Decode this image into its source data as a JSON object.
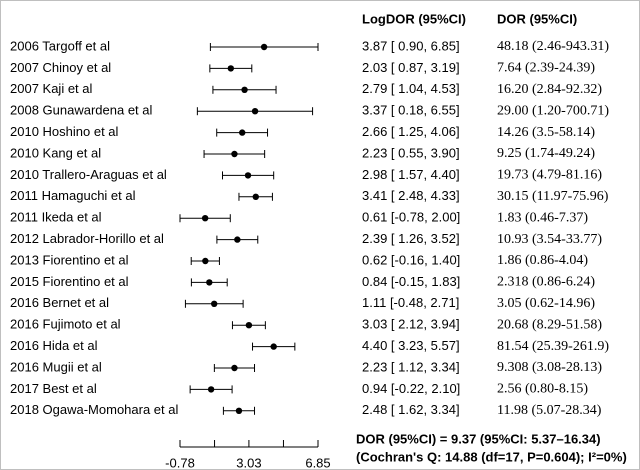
{
  "chart_data": {
    "type": "forest",
    "column_headers": [
      "LogDOR (95%CI)",
      "DOR (95%CI)"
    ],
    "categories": [
      "2006 Targoff et al",
      "2007 Chinoy et al",
      "2007 Kaji et al",
      "2008 Gunawardena et al",
      "2010 Hoshino et al",
      "2010 Kang et al",
      "2010 Trallero-Araguas et al",
      "2011 Hamaguchi et al",
      "2011 Ikeda et al",
      "2012 Labrador-Horillo et al",
      "2013 Fiorentino et al",
      "2015 Fiorentino et al",
      "2016 Bernet et al",
      "2016 Fujimoto et al",
      "2016 Hida et al",
      "2016 Mugii et al",
      "2017 Best et al",
      "2018 Ogawa-Momohara et al"
    ],
    "values": [
      3.87,
      2.03,
      2.79,
      3.37,
      2.66,
      2.23,
      2.98,
      3.41,
      0.61,
      2.39,
      0.62,
      0.84,
      1.11,
      3.03,
      4.4,
      2.23,
      0.94,
      2.48
    ],
    "lower": [
      0.9,
      0.87,
      1.04,
      0.18,
      1.25,
      0.55,
      1.57,
      2.48,
      -0.78,
      1.26,
      -0.16,
      -0.15,
      -0.48,
      2.12,
      3.23,
      1.12,
      -0.22,
      1.62
    ],
    "upper": [
      6.85,
      3.19,
      4.53,
      6.55,
      4.06,
      3.9,
      4.4,
      4.33,
      2.0,
      3.52,
      1.4,
      1.83,
      2.71,
      3.94,
      5.57,
      3.34,
      2.1,
      3.34
    ],
    "value_labels": [
      "3.87 [ 0.90, 6.85]",
      "2.03 [ 0.87, 3.19]",
      "2.79 [ 1.04, 4.53]",
      "3.37 [ 0.18, 6.55]",
      "2.66 [ 1.25, 4.06]",
      "2.23 [ 0.55, 3.90]",
      "2.98 [ 1.57, 4.40]",
      "3.41 [ 2.48, 4.33]",
      "0.61 [-0.78, 2.00]",
      "2.39 [ 1.26, 3.52]",
      "0.62 [-0.16, 1.40]",
      "0.84 [-0.15, 1.83]",
      "1.11 [-0.48, 2.71]",
      "3.03 [ 2.12, 3.94]",
      "4.40 [ 3.23, 5.57]",
      "2.23 [ 1.12, 3.34]",
      "0.94 [-0.22, 2.10]",
      "2.48 [ 1.62, 3.34]"
    ],
    "dor_labels": [
      "48.18 (2.46-943.31)",
      "7.64 (2.39-24.39)",
      "16.20 (2.84-92.32)",
      "29.00 (1.20-700.71)",
      "14.26 (3.5-58.14)",
      "9.25 (1.74-49.24)",
      "19.73 (4.79-81.16)",
      "30.15 (11.97-75.96)",
      "1.83 (0.46-7.37)",
      "10.93 (3.54-33.77)",
      "1.86 (0.86-4.04)",
      "2.318 (0.86-6.24)",
      "3.05 (0.62-14.96)",
      "20.68 (8.29-51.58)",
      "81.54 (25.39-261.9)",
      "9.308 (3.08-28.13)",
      "2.56 (0.80-8.15)",
      "11.98 (5.07-28.34)"
    ],
    "xlim": [
      -0.78,
      6.85
    ],
    "xticks": [
      -0.78,
      3.03,
      6.85
    ],
    "xminorticks": [
      1.13,
      4.94
    ],
    "color": "#000000",
    "summary": [
      "DOR (95%CI) = 9.37 (95%CI: 5.37–16.34)",
      "(Cochran's Q: 14.88 (df=17, P=0.604); I²=0%)"
    ],
    "summary_color": "#c0504d"
  }
}
